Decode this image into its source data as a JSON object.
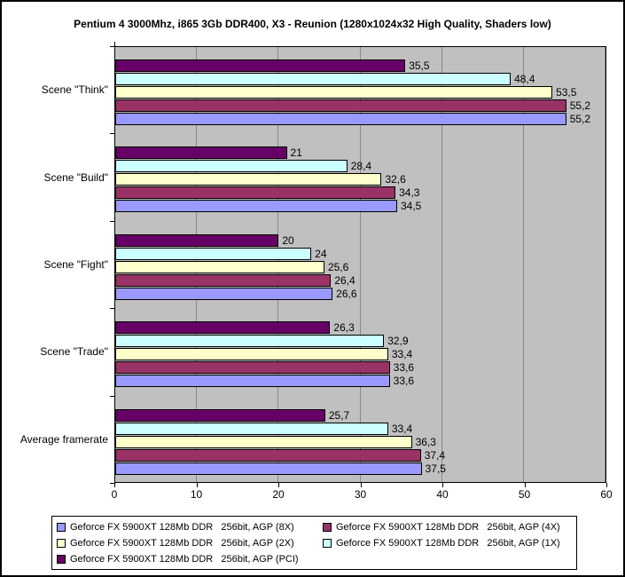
{
  "chart_data": {
    "type": "bar",
    "orientation": "horizontal",
    "title": "Pentium 4 3000Mhz, i865 3Gb DDR400, X3 - Reunion (1280x1024x32 High Quality, Shaders low)",
    "categories": [
      "Scene \"Think\"",
      "Scene \"Build\"",
      "Scene \"Fight\"",
      "Scene \"Trade\"",
      "Average framerate"
    ],
    "series": [
      {
        "name": "Geforce FX 5900XT 128Mb DDR   256bit, AGP (8X)",
        "color": "#9999FF",
        "values": [
          55.2,
          34.5,
          26.6,
          33.6,
          37.5
        ],
        "labels": [
          "55,2",
          "34,5",
          "26,6",
          "33,6",
          "37,5"
        ]
      },
      {
        "name": "Geforce FX 5900XT 128Mb DDR   256bit, AGP (4X)",
        "color": "#993366",
        "values": [
          55.2,
          34.3,
          26.4,
          33.6,
          37.4
        ],
        "labels": [
          "55,2",
          "34,3",
          "26,4",
          "33,6",
          "37,4"
        ]
      },
      {
        "name": "Geforce FX 5900XT 128Mb DDR   256bit, AGP (2X)",
        "color": "#FFFFCC",
        "values": [
          53.5,
          32.6,
          25.6,
          33.4,
          36.3
        ],
        "labels": [
          "53,5",
          "32,6",
          "25,6",
          "33,4",
          "36,3"
        ]
      },
      {
        "name": "Geforce FX 5900XT 128Mb DDR   256bit, AGP (1X)",
        "color": "#CCFFFF",
        "values": [
          48.4,
          28.4,
          24,
          32.9,
          33.4
        ],
        "labels": [
          "48,4",
          "28,4",
          "24",
          "32,9",
          "33,4"
        ]
      },
      {
        "name": "Geforce FX 5900XT 128Mb DDR   256bit, AGP (PCI)",
        "color": "#660066",
        "values": [
          35.5,
          21,
          20,
          26.3,
          25.7
        ],
        "labels": [
          "35,5",
          "21",
          "20",
          "26,3",
          "25,7"
        ]
      }
    ],
    "bar_draw_order": "reversed (last series on top of each group)",
    "xticks": [
      0,
      10,
      20,
      30,
      40,
      50,
      60
    ],
    "xtick_labels": [
      "0",
      "10",
      "20",
      "30",
      "40",
      "50",
      "60"
    ],
    "xlim": [
      0,
      60
    ],
    "plot_bg": "#C0C0C0",
    "gridline_color": "#888888",
    "bar_border_color": "#000000",
    "grid": "vertical-major",
    "legend_position": "bottom",
    "value_labels_shown": true
  }
}
